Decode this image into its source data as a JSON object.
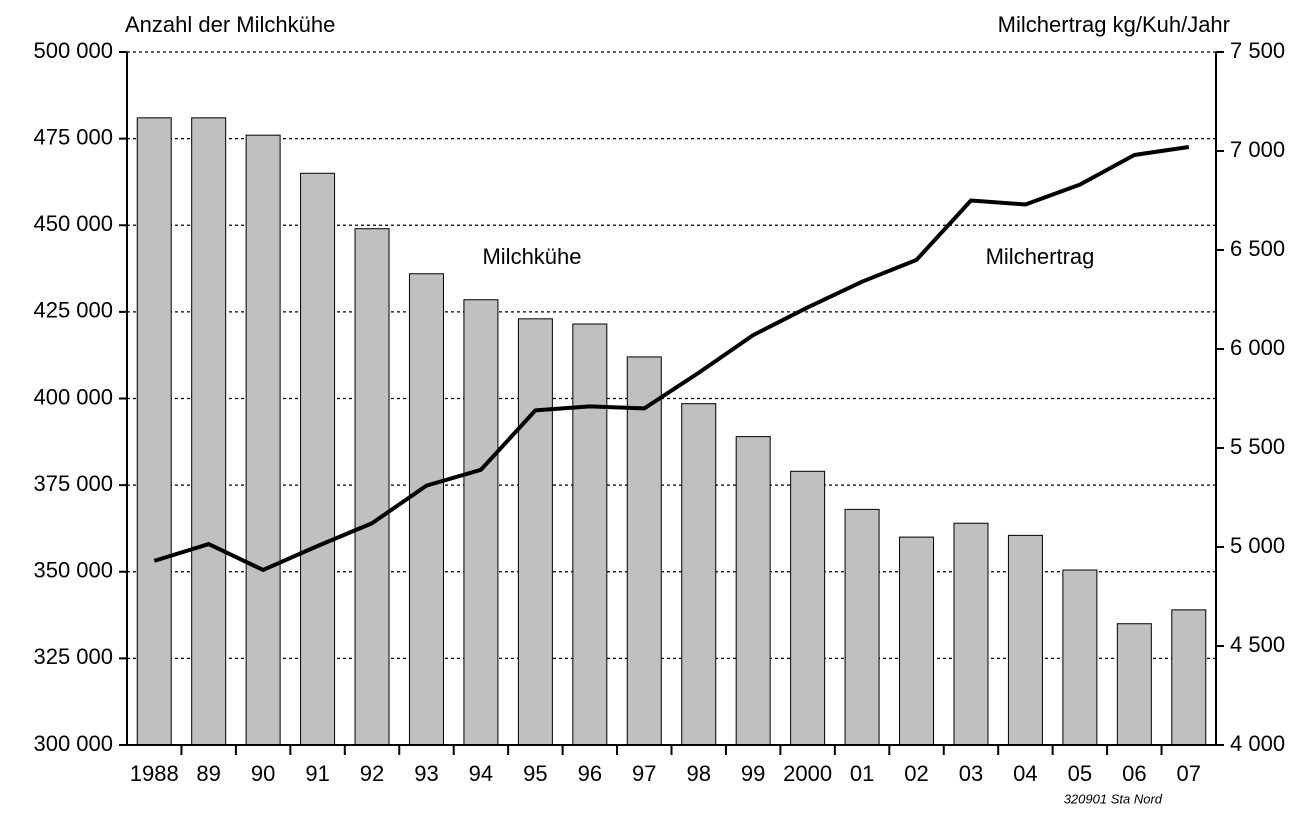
{
  "chart_data": {
    "type": "bar_line",
    "y_label": "Anzahl der Milchkühe",
    "y2_label": "Milchertrag kg/Kuh/Jahr",
    "annotations": [
      "Milchkühe",
      "Milchertrag"
    ],
    "source": "320901 Sta Nord",
    "categories": [
      "1988",
      "89",
      "90",
      "91",
      "92",
      "93",
      "94",
      "95",
      "96",
      "97",
      "98",
      "99",
      "2000",
      "01",
      "02",
      "03",
      "04",
      "05",
      "06",
      "07"
    ],
    "series": [
      {
        "name": "Milchkühe",
        "type": "bar",
        "color": "#c0c0c0",
        "values": [
          481000,
          481000,
          476000,
          465000,
          449000,
          436000,
          428500,
          423000,
          421500,
          412000,
          398500,
          389000,
          379000,
          368000,
          360000,
          364000,
          360500,
          350500,
          335000,
          339000
        ]
      },
      {
        "name": "Milchertrag",
        "type": "line",
        "axis": "y2",
        "color": "#000000",
        "values": [
          4930,
          5015,
          4884,
          5005,
          5120,
          5310,
          5390,
          5690,
          5710,
          5700,
          5880,
          6070,
          6210,
          6340,
          6450,
          6750,
          6730,
          6830,
          6980,
          7020
        ]
      }
    ],
    "ylim": [
      300000,
      500000
    ],
    "yticks": [
      {
        "value": 300000,
        "label": "300 000"
      },
      {
        "value": 325000,
        "label": "325 000"
      },
      {
        "value": 350000,
        "label": "350 000"
      },
      {
        "value": 375000,
        "label": "375 000"
      },
      {
        "value": 400000,
        "label": "400 000"
      },
      {
        "value": 425000,
        "label": "425 000"
      },
      {
        "value": 450000,
        "label": "450 000"
      },
      {
        "value": 475000,
        "label": "475 000"
      },
      {
        "value": 500000,
        "label": "500 000"
      }
    ],
    "y2lim": [
      4000,
      7500
    ],
    "y2ticks": [
      {
        "value": 4000,
        "label": "4 000"
      },
      {
        "value": 4500,
        "label": "4 500"
      },
      {
        "value": 5000,
        "label": "5 000"
      },
      {
        "value": 5500,
        "label": "5 500"
      },
      {
        "value": 6000,
        "label": "6 000"
      },
      {
        "value": 6500,
        "label": "6 500"
      },
      {
        "value": 7000,
        "label": "7 000"
      },
      {
        "value": 7500,
        "label": "7 500"
      }
    ],
    "grid": true
  }
}
